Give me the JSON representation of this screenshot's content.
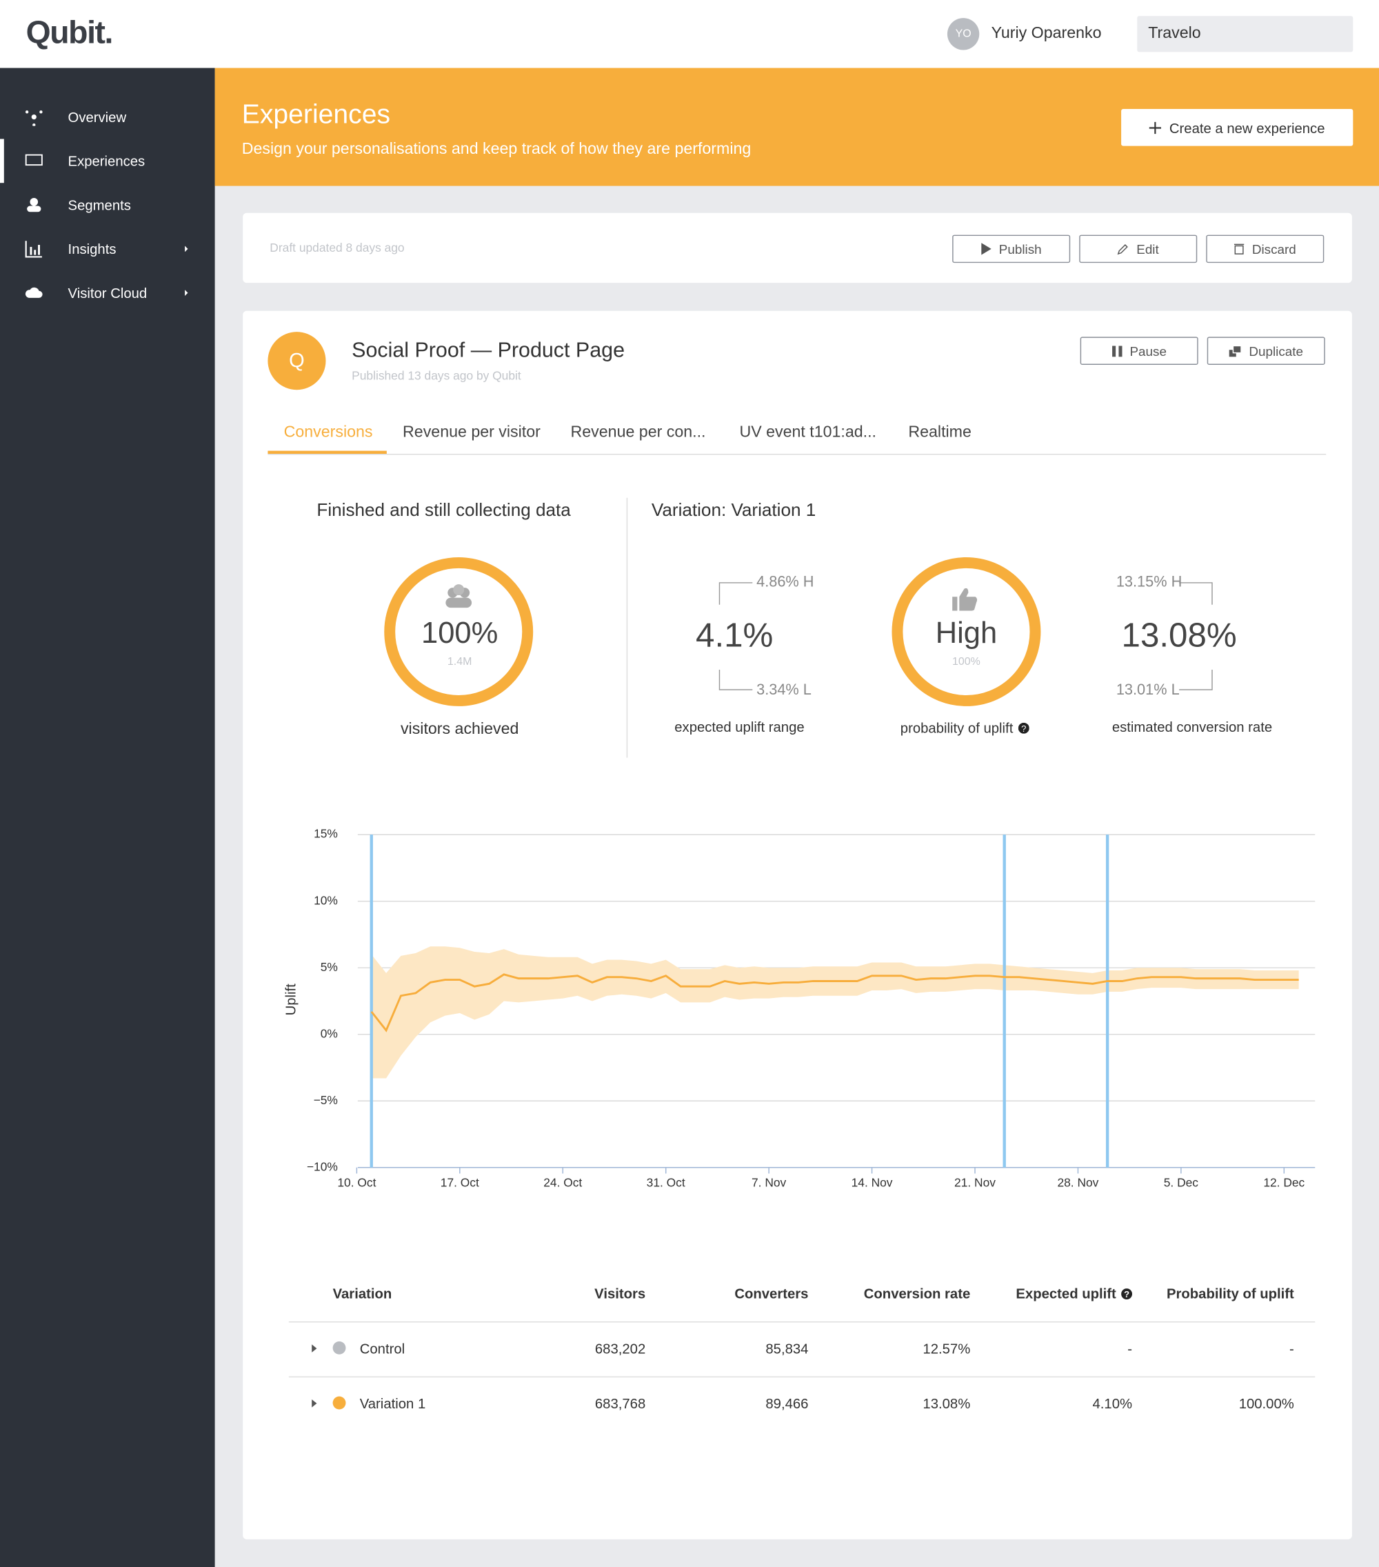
{
  "header": {
    "logo": "Qubit.",
    "user_initials": "YO",
    "user_name": "Yuriy Oparenko",
    "account": "Travelo"
  },
  "sidebar": {
    "items": [
      "Overview",
      "Experiences",
      "Segments",
      "Insights",
      "Visitor Cloud"
    ]
  },
  "banner": {
    "title": "Experiences",
    "subtitle": "Design your personalisations and keep track of how they are performing",
    "button": "Create a new experience"
  },
  "draft": {
    "status": "Draft updated 8 days ago",
    "buttons": [
      "Publish",
      "Edit",
      "Discard"
    ]
  },
  "experience": {
    "avatar": "Q",
    "title": "Social Proof — Product Page",
    "meta": "Published 13 days ago by Qubit",
    "buttons": [
      "Pause",
      "Duplicate"
    ],
    "tabs": [
      "Conversions",
      "Revenue per visitor",
      "Revenue per con...",
      "UV event t101:ad...",
      "Realtime"
    ]
  },
  "summary": {
    "status_title": "Finished and still collecting data",
    "progress": {
      "value": "100%",
      "visitors": "1.4M",
      "label": "visitors achieved"
    },
    "variation_title": "Variation: Variation 1",
    "uplift": {
      "value": "4.1%",
      "high": "4.86% H",
      "low": "3.34% L",
      "label": "expected uplift range"
    },
    "probability": {
      "value": "High",
      "percent": "100%",
      "label": "probability of uplift"
    },
    "conversion": {
      "value": "13.08%",
      "high": "13.15% H",
      "low": "13.01% L",
      "label": "estimated conversion rate"
    }
  },
  "chart_data": {
    "type": "line",
    "y_label": "Uplift",
    "color": "#f7ad3c",
    "band_color": "#fde7c4",
    "event_color": "#8ec8f0",
    "grid": true,
    "categories": [
      "10. Oct",
      null,
      null,
      null,
      null,
      null,
      null,
      "17. Oct",
      null,
      null,
      null,
      null,
      null,
      null,
      "24. Oct",
      null,
      null,
      null,
      null,
      null,
      null,
      "31. Oct",
      null,
      null,
      null,
      null,
      null,
      null,
      "7. Nov",
      null,
      null,
      null,
      null,
      null,
      null,
      "14. Nov",
      null,
      null,
      null,
      null,
      null,
      null,
      "21. Nov",
      null,
      null,
      null,
      null,
      null,
      null,
      "28. Nov",
      null,
      null,
      null,
      null,
      null,
      null,
      "5. Dec",
      null,
      null,
      null,
      null,
      null,
      null,
      "12. Dec",
      null
    ],
    "values": [
      null,
      1.7,
      0.3,
      2.9,
      3.1,
      3.9,
      4.1,
      4.1,
      3.6,
      3.8,
      4.5,
      4.2,
      4.2,
      4.2,
      4.3,
      4.4,
      3.9,
      4.3,
      4.3,
      4.2,
      4.0,
      4.4,
      3.6,
      3.6,
      3.6,
      4.0,
      3.8,
      3.9,
      3.8,
      3.9,
      3.9,
      4.0,
      4.0,
      4.0,
      4.0,
      4.4,
      4.4,
      4.4,
      4.1,
      4.2,
      4.2,
      4.3,
      4.4,
      4.4,
      4.3,
      4.3,
      4.2,
      4.1,
      4.0,
      3.9,
      3.8,
      4.0,
      4.0,
      4.2,
      4.3,
      4.3,
      4.3,
      4.2,
      4.2,
      4.2,
      4.2,
      4.1,
      4.1,
      4.1,
      4.1
    ],
    "band_upper": [
      null,
      6.0,
      4.6,
      5.9,
      6.1,
      6.6,
      6.6,
      6.5,
      6.2,
      6.1,
      6.4,
      6.0,
      5.9,
      5.8,
      5.8,
      5.8,
      5.3,
      5.6,
      5.6,
      5.5,
      5.3,
      5.6,
      4.9,
      4.9,
      4.9,
      5.2,
      5.0,
      5.1,
      5.0,
      5.0,
      5.0,
      5.1,
      5.1,
      5.1,
      5.1,
      5.4,
      5.4,
      5.4,
      5.1,
      5.1,
      5.1,
      5.2,
      5.3,
      5.3,
      5.2,
      5.1,
      5.0,
      4.9,
      4.8,
      4.7,
      4.6,
      4.8,
      4.8,
      5.0,
      5.0,
      5.0,
      5.0,
      4.9,
      4.9,
      4.9,
      4.9,
      4.8,
      4.8,
      4.8,
      4.8
    ],
    "band_lower": [
      null,
      -3.3,
      -3.3,
      -1.6,
      -0.2,
      0.9,
      1.4,
      1.6,
      1.1,
      1.5,
      2.5,
      2.4,
      2.5,
      2.6,
      2.7,
      2.9,
      2.5,
      2.9,
      3.0,
      2.9,
      2.7,
      3.1,
      2.4,
      2.4,
      2.4,
      2.8,
      2.6,
      2.7,
      2.7,
      2.8,
      2.8,
      2.9,
      2.9,
      2.9,
      2.9,
      3.3,
      3.3,
      3.4,
      3.1,
      3.2,
      3.2,
      3.3,
      3.4,
      3.4,
      3.3,
      3.3,
      3.3,
      3.2,
      3.1,
      3.0,
      3.0,
      3.2,
      3.2,
      3.4,
      3.5,
      3.5,
      3.5,
      3.4,
      3.4,
      3.4,
      3.4,
      3.4,
      3.4,
      3.4,
      3.4
    ],
    "event_lines": [
      1,
      44,
      51
    ],
    "ylim": [
      -10,
      15
    ],
    "yticks": [
      {
        "value": -10,
        "label": "−10%"
      },
      {
        "value": -5,
        "label": "−5%"
      },
      {
        "value": 0,
        "label": "0%"
      },
      {
        "value": 5,
        "label": "5%"
      },
      {
        "value": 10,
        "label": "10%"
      },
      {
        "value": 15,
        "label": "15%"
      }
    ]
  },
  "table": {
    "columns": [
      "Variation",
      "Visitors",
      "Converters",
      "Conversion rate",
      "Expected uplift",
      "Probability of uplift"
    ],
    "rows": [
      [
        "Control",
        "683,202",
        "85,834",
        "12.57%",
        "-",
        "-"
      ],
      [
        "Variation 1",
        "683,768",
        "89,466",
        "13.08%",
        "4.10%",
        "100.00%"
      ]
    ]
  }
}
